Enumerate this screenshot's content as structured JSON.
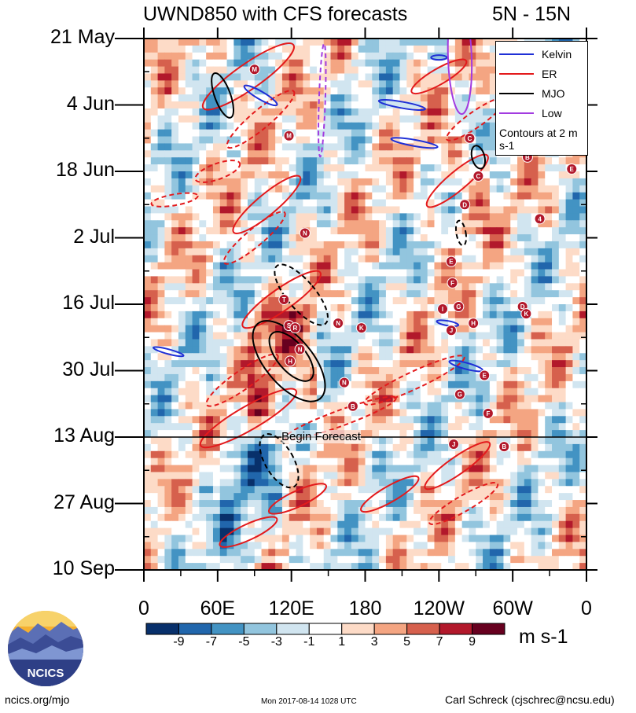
{
  "header": {
    "title": "UWND850 with CFS forecasts",
    "region": "5N - 15N"
  },
  "chart_data": {
    "type": "heatmap",
    "title": "UWND850 with CFS forecasts",
    "subtitle": "5N - 15N",
    "x_ticks": [
      "0",
      "60E",
      "120E",
      "180",
      "120W",
      "60W",
      "0"
    ],
    "x_range_deg": [
      0,
      360
    ],
    "y_ticks": [
      "21 May",
      "4 Jun",
      "18 Jun",
      "2 Jul",
      "16 Jul",
      "30 Jul",
      "13 Aug",
      "27 Aug",
      "10 Sep"
    ],
    "y_range_days": [
      0,
      112
    ],
    "colorbar": {
      "units": "m s-1",
      "labels": [
        "-9",
        "-7",
        "-5",
        "-3",
        "-1",
        "1",
        "3",
        "5",
        "7",
        "9"
      ],
      "colors": [
        "#08306b",
        "#2166ac",
        "#4393c3",
        "#92c5de",
        "#d1e5f0",
        "#ffffff",
        "#fddbc7",
        "#f4a582",
        "#d6604d",
        "#b2182b",
        "#67001f"
      ]
    },
    "legend": [
      {
        "name": "Kelvin",
        "color": "#1f2fd6",
        "dash": false
      },
      {
        "name": "ER",
        "color": "#e31a1c",
        "dash": false
      },
      {
        "name": "MJO",
        "color": "#000000",
        "dash": false
      },
      {
        "name": "Low",
        "color": "#a23be0",
        "dash": false
      }
    ],
    "contour_note": "Contours at 2 m s-1",
    "annotation": "Begin Forecast",
    "forecast_start_day": 84,
    "storms": [
      {
        "letter": "M",
        "lon": 90,
        "day": 6.5
      },
      {
        "letter": "M",
        "lon": 118,
        "day": 20.5
      },
      {
        "letter": "N",
        "lon": 131,
        "day": 41
      },
      {
        "letter": "T",
        "lon": 114,
        "day": 55
      },
      {
        "letter": "S",
        "lon": 118,
        "day": 60.5
      },
      {
        "letter": "R",
        "lon": 123,
        "day": 61
      },
      {
        "letter": "N",
        "lon": 127,
        "day": 65.5
      },
      {
        "letter": "H",
        "lon": 119,
        "day": 68
      },
      {
        "letter": "N",
        "lon": 158,
        "day": 60
      },
      {
        "letter": "K",
        "lon": 177,
        "day": 61
      },
      {
        "letter": "N",
        "lon": 163,
        "day": 72.5
      },
      {
        "letter": "B",
        "lon": 170,
        "day": 77.5
      },
      {
        "letter": "C",
        "lon": 265,
        "day": 21
      },
      {
        "letter": "C",
        "lon": 272,
        "day": 29
      },
      {
        "letter": "D",
        "lon": 261,
        "day": 35
      },
      {
        "letter": "E",
        "lon": 250,
        "day": 47
      },
      {
        "letter": "F",
        "lon": 251,
        "day": 51.5
      },
      {
        "letter": "G",
        "lon": 256,
        "day": 56.5
      },
      {
        "letter": "I",
        "lon": 243,
        "day": 57
      },
      {
        "letter": "J",
        "lon": 250,
        "day": 61.5
      },
      {
        "letter": "H",
        "lon": 268,
        "day": 60
      },
      {
        "letter": "D",
        "lon": 308,
        "day": 56.5
      },
      {
        "letter": "E",
        "lon": 277,
        "day": 71
      },
      {
        "letter": "F",
        "lon": 280,
        "day": 79
      },
      {
        "letter": "G",
        "lon": 257,
        "day": 75
      },
      {
        "letter": "J",
        "lon": 252,
        "day": 85.5
      },
      {
        "letter": "B",
        "lon": 293,
        "day": 86
      },
      {
        "letter": "4",
        "lon": 322,
        "day": 38
      },
      {
        "letter": "B",
        "lon": 312,
        "day": 25
      },
      {
        "letter": "E",
        "lon": 348,
        "day": 27.5
      },
      {
        "letter": "K",
        "lon": 311,
        "day": 58
      }
    ]
  },
  "footer": {
    "url": "ncics.org/mjo",
    "timestamp": "Mon 2017-08-14 1028 UTC",
    "author": "Carl Schreck (cjschrec@ncsu.edu)",
    "logo_text": "NCICS"
  }
}
